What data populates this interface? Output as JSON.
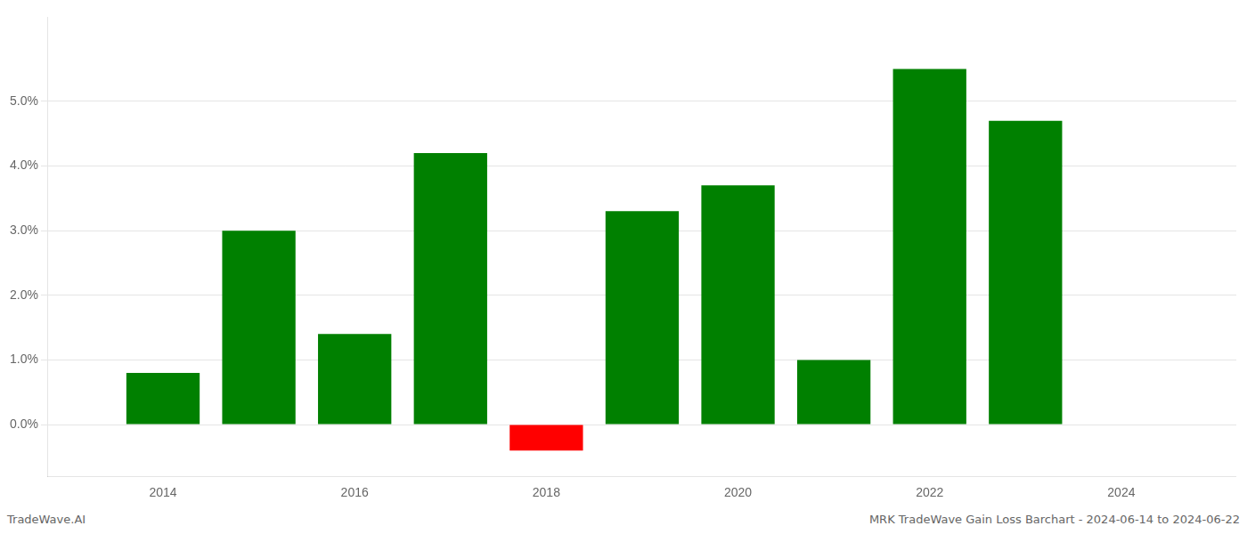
{
  "chart_data": {
    "type": "bar",
    "x": [
      2014,
      2015,
      2016,
      2017,
      2018,
      2019,
      2020,
      2021,
      2022,
      2023
    ],
    "values": [
      0.008,
      0.03,
      0.014,
      0.042,
      -0.004,
      0.033,
      0.037,
      0.01,
      0.055,
      0.047
    ],
    "colors": [
      "#008000",
      "#008000",
      "#008000",
      "#008000",
      "#ff0000",
      "#008000",
      "#008000",
      "#008000",
      "#008000",
      "#008000"
    ],
    "xlim": [
      2012.8,
      2025.2
    ],
    "xticks": [
      2014,
      2016,
      2018,
      2020,
      2022,
      2024
    ],
    "ylim": [
      -0.008,
      0.063
    ],
    "yticks": [
      {
        "value": 0.0,
        "label": "0.0%"
      },
      {
        "value": 0.01,
        "label": "1.0%"
      },
      {
        "value": 0.02,
        "label": "2.0%"
      },
      {
        "value": 0.03,
        "label": "3.0%"
      },
      {
        "value": 0.04,
        "label": "4.0%"
      },
      {
        "value": 0.05,
        "label": "5.0%"
      }
    ],
    "grid": "y",
    "annotations": [
      "TradeWave.AI",
      "MRK TradeWave Gain Loss Barchart - 2024-06-14 to 2024-06-22"
    ]
  }
}
